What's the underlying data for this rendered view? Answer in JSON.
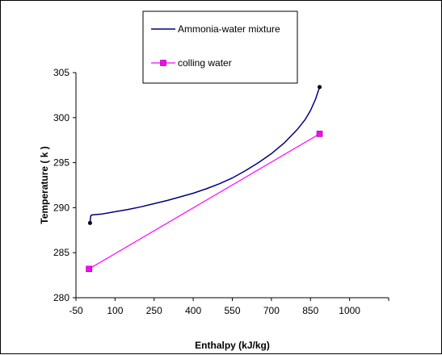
{
  "chart_data": {
    "type": "line",
    "title": "",
    "xlabel": "Enthalpy (kJ/kg)",
    "ylabel": "Temperature ( k )",
    "xlim": [
      -50,
      1150
    ],
    "ylim": [
      280,
      305
    ],
    "xticks": [
      -50,
      100,
      250,
      400,
      550,
      700,
      850,
      1000
    ],
    "yticks": [
      280,
      285,
      290,
      295,
      300,
      305
    ],
    "grid": false,
    "legend_position": "top",
    "series": [
      {
        "name": "Ammonia-water mixture",
        "color": "#000080",
        "marker": "none",
        "x": [
          4,
          6,
          8,
          15,
          50,
          100,
          150,
          200,
          250,
          300,
          350,
          400,
          450,
          500,
          550,
          600,
          650,
          700,
          750,
          800,
          830,
          850,
          870,
          885
        ],
        "y": [
          288.3,
          289.0,
          289.15,
          289.2,
          289.3,
          289.55,
          289.8,
          290.1,
          290.45,
          290.8,
          291.2,
          291.6,
          292.1,
          292.65,
          293.3,
          294.1,
          295.0,
          296.0,
          297.2,
          298.7,
          299.8,
          300.8,
          302.1,
          303.4
        ],
        "endpoints": [
          {
            "x": 4,
            "y": 288.3
          },
          {
            "x": 885,
            "y": 303.4
          }
        ]
      },
      {
        "name": "colling water",
        "color": "#FF00FF",
        "marker": "square",
        "x": [
          0,
          885
        ],
        "y": [
          283.2,
          298.2
        ]
      }
    ]
  }
}
